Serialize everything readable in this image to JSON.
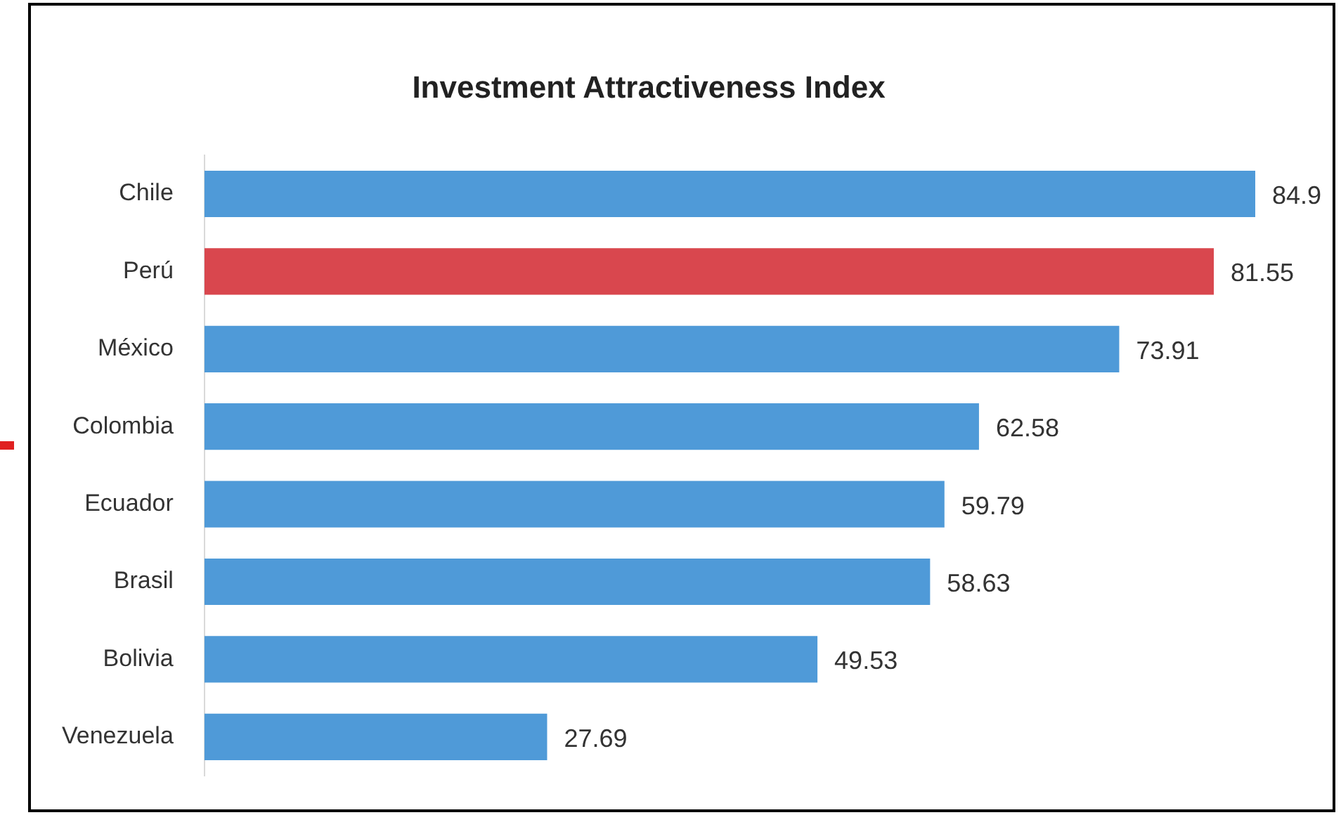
{
  "chart_data": {
    "type": "bar",
    "orientation": "horizontal",
    "title": "Investment Attractiveness Index",
    "categories": [
      "Chile",
      "Perú",
      "México",
      "Colombia",
      "Ecuador",
      "Brasil",
      "Bolivia",
      "Venezuela"
    ],
    "values": [
      84.9,
      81.55,
      73.91,
      62.58,
      59.79,
      58.63,
      49.53,
      27.69
    ],
    "colors": [
      "#4f9ad8",
      "#d9474e",
      "#4f9ad8",
      "#4f9ad8",
      "#4f9ad8",
      "#4f9ad8",
      "#4f9ad8",
      "#4f9ad8"
    ],
    "data_labels": true,
    "legend": false
  }
}
